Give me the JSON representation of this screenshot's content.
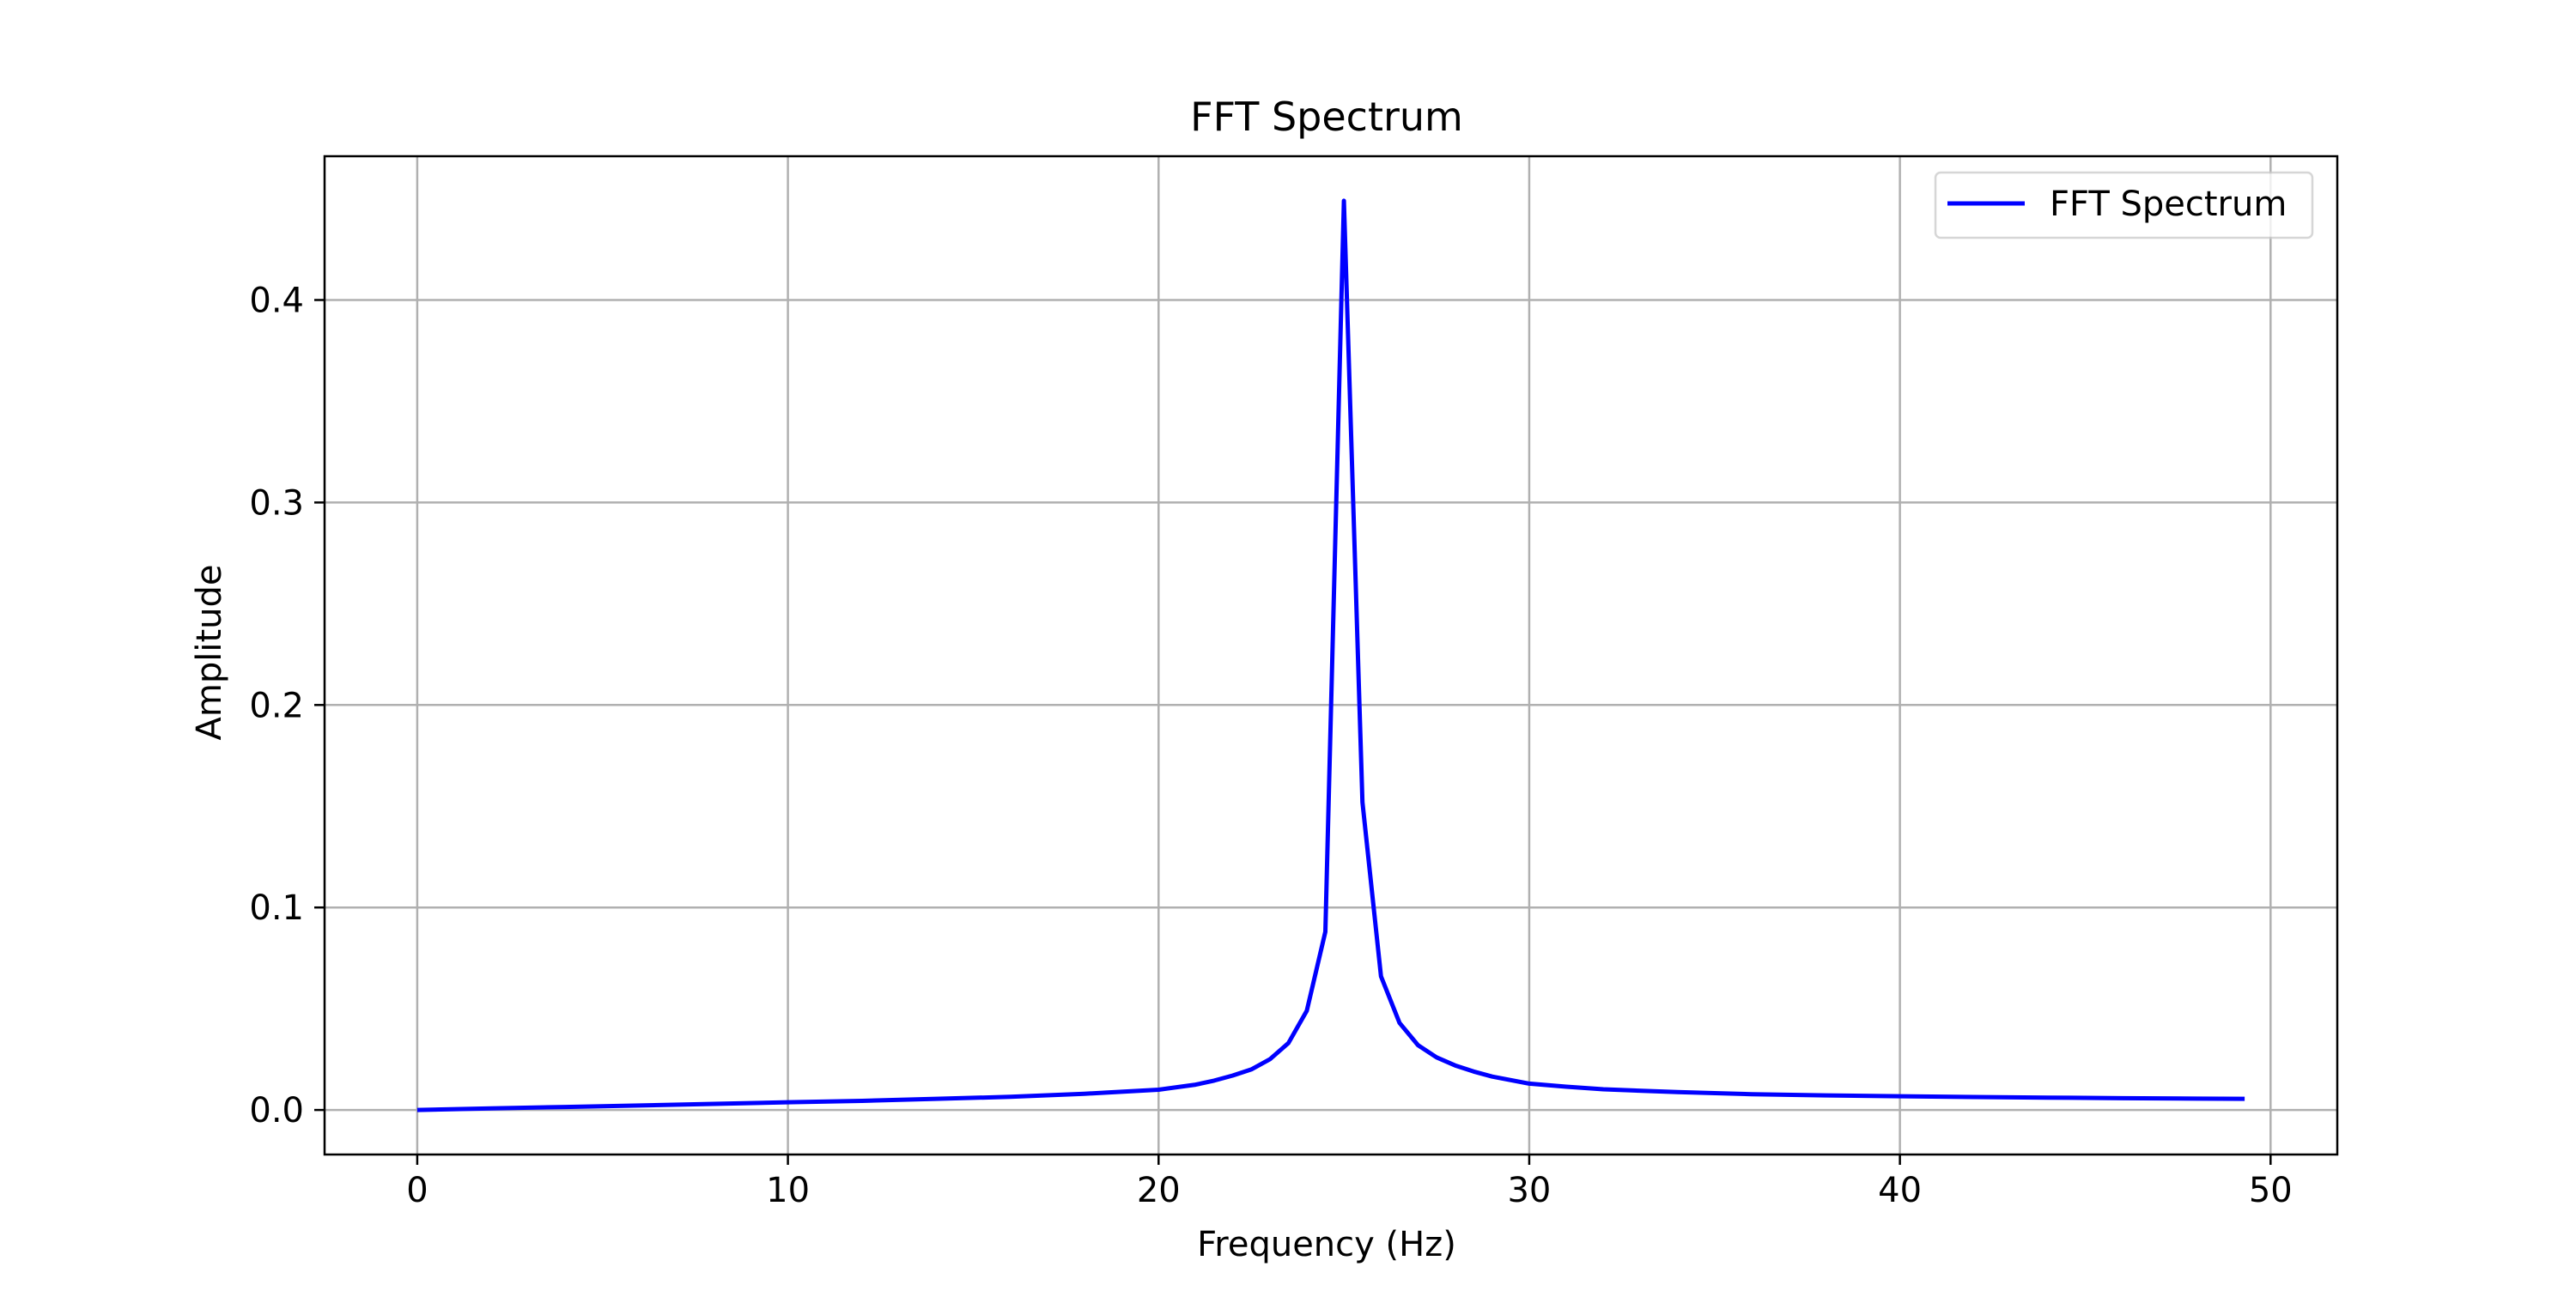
{
  "chart_data": {
    "type": "line",
    "title": "FFT Spectrum",
    "xlabel": "Frequency (Hz)",
    "ylabel": "Amplitude",
    "xlim": [
      -2.5,
      51.8
    ],
    "ylim": [
      -0.022,
      0.471
    ],
    "xticks": [
      0,
      10,
      20,
      30,
      40,
      50
    ],
    "xtick_labels": [
      "0",
      "10",
      "20",
      "30",
      "40",
      "50"
    ],
    "yticks": [
      0.0,
      0.1,
      0.2,
      0.3,
      0.4
    ],
    "ytick_labels": [
      "0.0",
      "0.1",
      "0.2",
      "0.3",
      "0.4"
    ],
    "grid": true,
    "legend_position": "top-right",
    "series": [
      {
        "name": "FFT Spectrum",
        "color": "#0000ff",
        "x": [
          0,
          2,
          4,
          6,
          8,
          10,
          12,
          14,
          16,
          18,
          19,
          20,
          21,
          21.5,
          22,
          22.5,
          23,
          23.5,
          24,
          24.5,
          25,
          25.5,
          26,
          26.5,
          27,
          27.5,
          28,
          28.5,
          29,
          30,
          31,
          32,
          34,
          36,
          38,
          40,
          42,
          44,
          46,
          48,
          49.3
        ],
        "values": [
          0.0,
          0.0008,
          0.0015,
          0.0022,
          0.003,
          0.0038,
          0.0045,
          0.0055,
          0.0065,
          0.008,
          0.009,
          0.01,
          0.0125,
          0.0145,
          0.017,
          0.02,
          0.025,
          0.033,
          0.049,
          0.088,
          0.449,
          0.152,
          0.066,
          0.043,
          0.032,
          0.026,
          0.022,
          0.019,
          0.0165,
          0.013,
          0.0115,
          0.0102,
          0.0088,
          0.0078,
          0.0072,
          0.0068,
          0.0064,
          0.0061,
          0.0058,
          0.0056,
          0.0055
        ]
      }
    ]
  }
}
